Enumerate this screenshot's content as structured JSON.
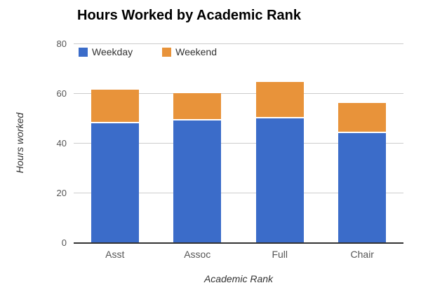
{
  "title": "Hours Worked by Academic Rank",
  "colors": {
    "weekday": "#3B6CC9",
    "weekend": "#E8933A",
    "gridline": "#CCCCCC",
    "axis_line": "#333333",
    "tick_text": "#555555",
    "title_text": "#000000"
  },
  "legend": {
    "items": [
      {
        "label": "Weekday",
        "color": "#3B6CC9"
      },
      {
        "label": "Weekend",
        "color": "#E8933A"
      }
    ]
  },
  "chart_data": {
    "type": "bar",
    "stacked": true,
    "title": "Hours Worked by Academic Rank",
    "xlabel": "Academic Rank",
    "ylabel": "Hours worked",
    "categories": [
      "Asst",
      "Assoc",
      "Full",
      "Chair"
    ],
    "series": [
      {
        "name": "Weekday",
        "color": "#3B6CC9",
        "values": [
          48,
          49,
          50,
          44
        ]
      },
      {
        "name": "Weekend",
        "color": "#E8933A",
        "values": [
          13.5,
          11,
          14.5,
          12
        ]
      }
    ],
    "totals": [
      61.5,
      60,
      64.5,
      56
    ],
    "ylim": [
      0,
      80
    ],
    "yticks": [
      0,
      20,
      40,
      60,
      80
    ],
    "grid": true,
    "legend_position": "top-left-inside"
  }
}
